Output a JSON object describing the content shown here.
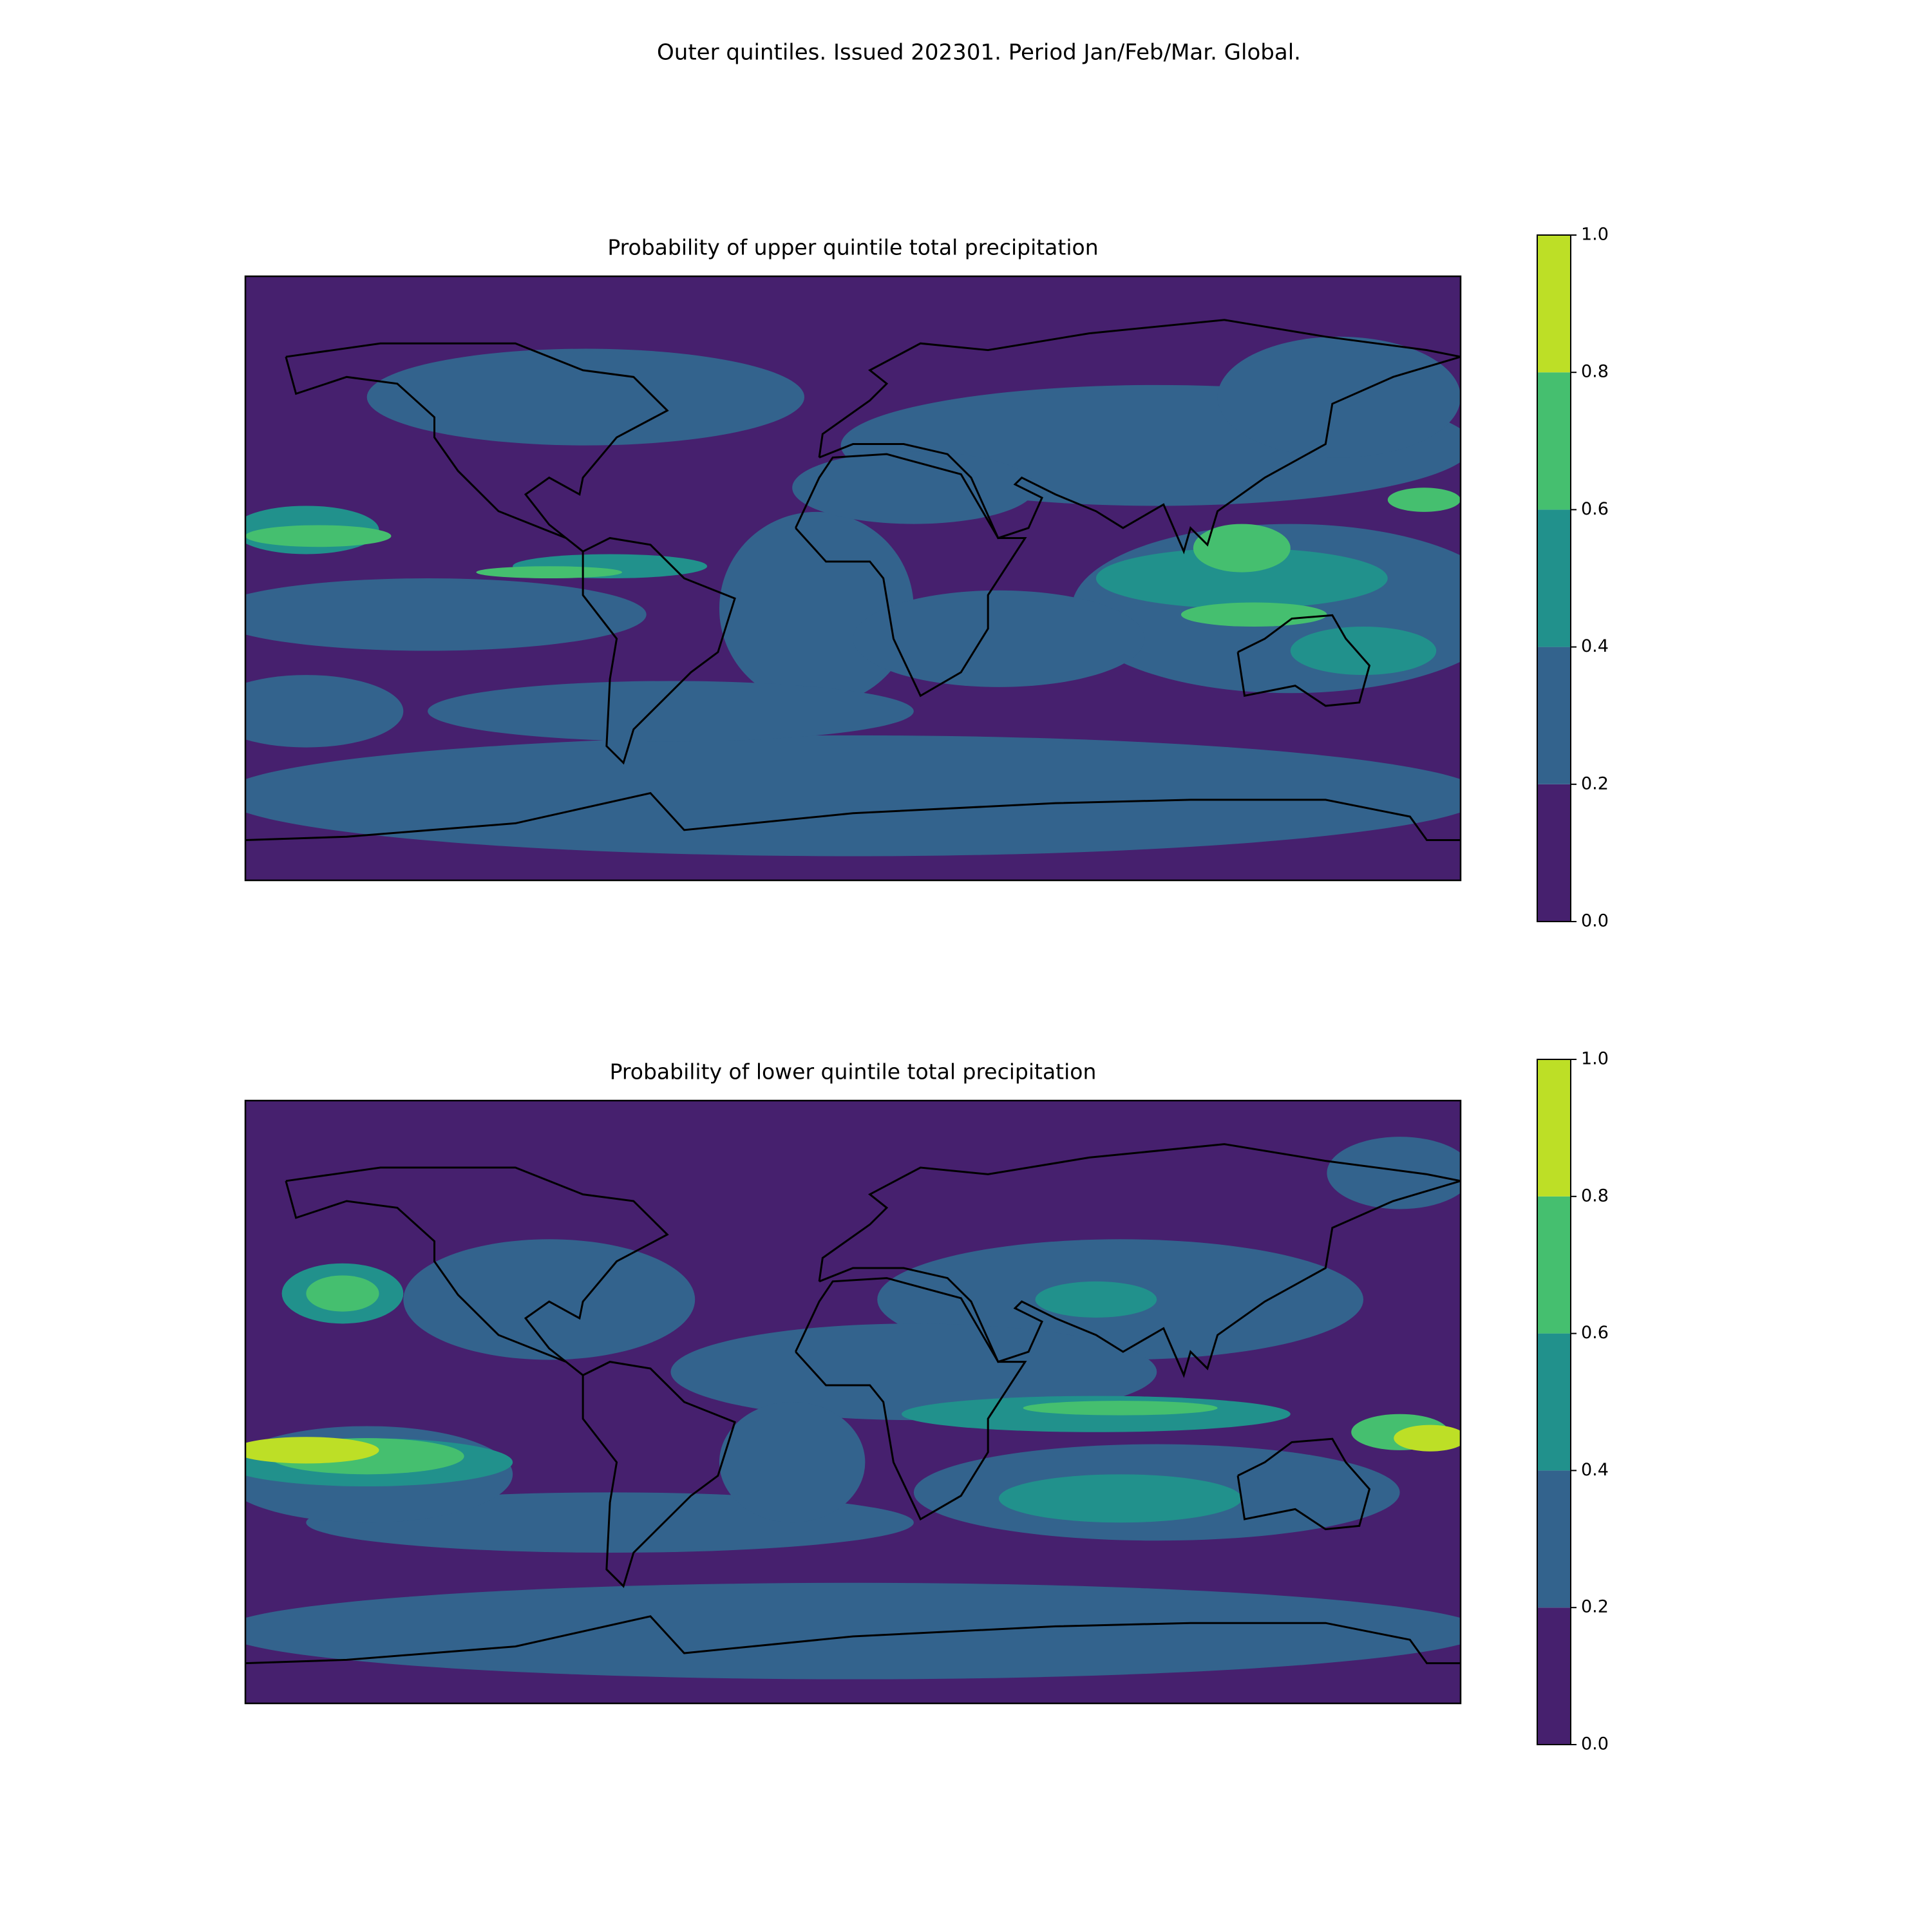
{
  "title": "Outer quintiles. Issued 202301. Period Jan/Feb/Mar. Global.",
  "chart_data": [
    {
      "type": "map",
      "title": "Probability of upper quintile total precipitation",
      "clim": [
        0,
        1
      ],
      "cticks": [
        {
          "value": 0,
          "label": "0.0"
        },
        0.2,
        0.4,
        0.6,
        0.8,
        {
          "value": 1,
          "label": "1.0"
        }
      ],
      "colors": [
        "#46206e",
        "#33638d",
        "#21918c",
        "#45bf6f",
        "#bddf26"
      ]
    },
    {
      "type": "map",
      "title": "Probability of lower quintile total precipitation",
      "clim": [
        0,
        1
      ],
      "cticks": [
        {
          "value": 0,
          "label": "0.0"
        },
        0.2,
        0.4,
        0.6,
        0.8,
        {
          "value": 1,
          "label": "1.0"
        }
      ],
      "colors": [
        "#46206e",
        "#33638d",
        "#21918c",
        "#45bf6f",
        "#bddf26"
      ]
    }
  ]
}
